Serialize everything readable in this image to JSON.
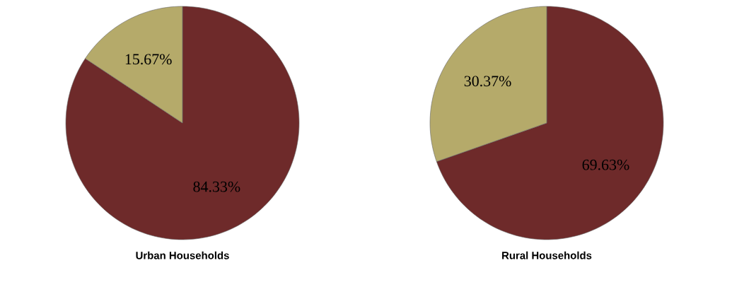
{
  "chart_data": [
    {
      "type": "pie",
      "title": "Urban Households",
      "categories": [
        null,
        null
      ],
      "values": [
        84.33,
        15.67
      ],
      "colors": [
        "#6e2a2a",
        "#b5aa6a"
      ],
      "value_labels": [
        "84.33%",
        "15.67%"
      ]
    },
    {
      "type": "pie",
      "title": "Rural Households",
      "categories": [
        null,
        null
      ],
      "values": [
        69.63,
        30.37
      ],
      "colors": [
        "#6e2a2a",
        "#b5aa6a"
      ],
      "value_labels": [
        "69.63%",
        "30.37%"
      ]
    }
  ]
}
